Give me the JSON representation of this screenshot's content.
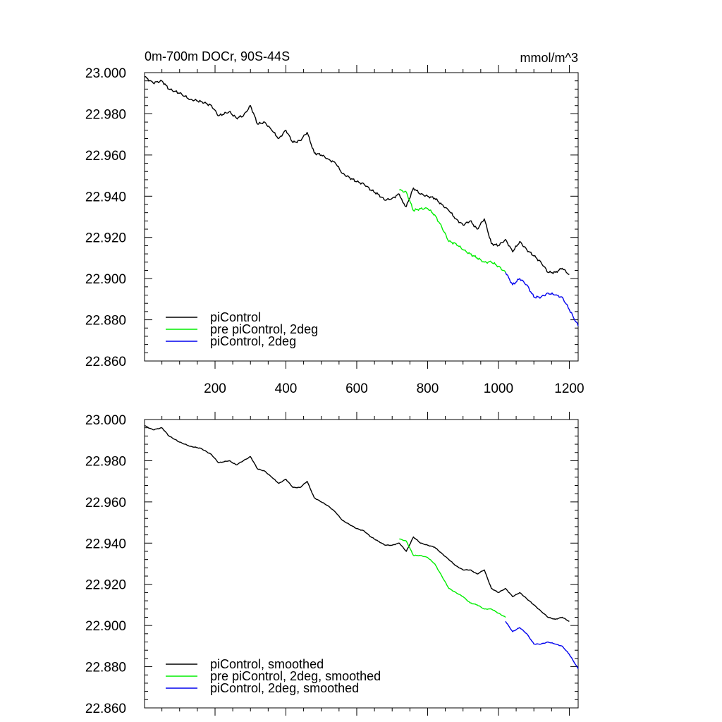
{
  "chart_data": [
    {
      "type": "line",
      "title": "0m-700m DOCr, 90S-44S",
      "units": "mmol/m^3",
      "xlim": [
        1,
        1225
      ],
      "ylim": [
        22.86,
        23.0
      ],
      "x_ticks": [
        200,
        400,
        600,
        800,
        1000,
        1200
      ],
      "x_tick_labels": [
        "200",
        "400",
        "600",
        "800",
        "1000",
        "1200"
      ],
      "y_ticks": [
        22.86,
        22.88,
        22.9,
        22.92,
        22.94,
        22.96,
        22.98,
        23.0
      ],
      "y_tick_labels": [
        "22.860",
        "22.880",
        "22.900",
        "22.920",
        "22.940",
        "22.960",
        "22.980",
        "23.000"
      ],
      "legend_position": "bottom-left",
      "series": [
        {
          "name": "piControl",
          "color": "#000000",
          "x": [
            1,
            25,
            50,
            70,
            100,
            130,
            160,
            190,
            210,
            240,
            260,
            280,
            300,
            320,
            340,
            360,
            380,
            400,
            420,
            440,
            460,
            480,
            500,
            520,
            540,
            560,
            580,
            600,
            620,
            640,
            660,
            680,
            700,
            720,
            730,
            740,
            760,
            780,
            800,
            820,
            840,
            860,
            880,
            900,
            920,
            940,
            960,
            980,
            1000,
            1020,
            1040,
            1060,
            1080,
            1100,
            1120,
            1140,
            1160,
            1180,
            1200
          ],
          "values": [
            22.998,
            22.995,
            22.996,
            22.992,
            22.99,
            22.987,
            22.986,
            22.984,
            22.979,
            22.981,
            22.978,
            22.979,
            22.984,
            22.975,
            22.976,
            22.972,
            22.968,
            22.972,
            22.966,
            22.967,
            22.971,
            22.961,
            22.96,
            22.958,
            22.956,
            22.951,
            22.949,
            22.947,
            22.946,
            22.943,
            22.941,
            22.938,
            22.939,
            22.941,
            22.937,
            22.935,
            22.944,
            22.941,
            22.94,
            22.939,
            22.936,
            22.933,
            22.929,
            22.926,
            22.928,
            22.924,
            22.929,
            22.917,
            22.916,
            22.919,
            22.913,
            22.918,
            22.914,
            22.911,
            22.908,
            22.903,
            22.903,
            22.905,
            22.902
          ]
        },
        {
          "name": "pre piControl, 2deg",
          "color": "#00ee00",
          "x": [
            720,
            740,
            760,
            780,
            800,
            820,
            840,
            860,
            880,
            900,
            920,
            940,
            960,
            980,
            1000,
            1020
          ],
          "values": [
            22.943,
            22.942,
            22.933,
            22.934,
            22.934,
            22.931,
            22.925,
            22.918,
            22.917,
            22.914,
            22.912,
            22.91,
            22.908,
            22.908,
            22.906,
            22.903
          ]
        },
        {
          "name": "piControl, 2deg",
          "color": "#0000ee",
          "x": [
            1020,
            1040,
            1060,
            1080,
            1100,
            1120,
            1140,
            1160,
            1180,
            1200,
            1225
          ],
          "values": [
            22.903,
            22.897,
            22.9,
            22.897,
            22.891,
            22.891,
            22.893,
            22.892,
            22.891,
            22.885,
            22.877
          ]
        }
      ]
    },
    {
      "type": "line",
      "xlim": [
        1,
        1225
      ],
      "ylim": [
        22.86,
        23.0
      ],
      "y_ticks": [
        22.86,
        22.88,
        22.9,
        22.92,
        22.94,
        22.96,
        22.98,
        23.0
      ],
      "y_tick_labels": [
        "22.860",
        "22.880",
        "22.900",
        "22.920",
        "22.940",
        "22.960",
        "22.980",
        "23.000"
      ],
      "legend_position": "bottom-left",
      "series": [
        {
          "name": "piControl, smoothed",
          "color": "#000000",
          "x": [
            1,
            25,
            50,
            70,
            100,
            130,
            160,
            190,
            210,
            240,
            260,
            280,
            300,
            320,
            340,
            360,
            380,
            400,
            420,
            440,
            460,
            480,
            500,
            520,
            540,
            560,
            580,
            600,
            620,
            640,
            660,
            680,
            700,
            720,
            740,
            760,
            780,
            800,
            820,
            840,
            860,
            880,
            900,
            920,
            940,
            960,
            980,
            1000,
            1020,
            1040,
            1060,
            1080,
            1100,
            1120,
            1140,
            1160,
            1180,
            1200
          ],
          "values": [
            22.997,
            22.995,
            22.996,
            22.992,
            22.989,
            22.987,
            22.986,
            22.983,
            22.979,
            22.98,
            22.978,
            22.98,
            22.982,
            22.976,
            22.975,
            22.972,
            22.969,
            22.971,
            22.967,
            22.967,
            22.97,
            22.962,
            22.96,
            22.958,
            22.955,
            22.951,
            22.949,
            22.947,
            22.946,
            22.943,
            22.941,
            22.939,
            22.939,
            22.94,
            22.936,
            22.943,
            22.94,
            22.939,
            22.938,
            22.935,
            22.932,
            22.929,
            22.927,
            22.927,
            22.925,
            22.927,
            22.918,
            22.916,
            22.918,
            22.914,
            22.916,
            22.913,
            22.91,
            22.907,
            22.904,
            22.903,
            22.904,
            22.902
          ]
        },
        {
          "name": "pre piControl, 2deg, smoothed",
          "color": "#00ee00",
          "x": [
            720,
            740,
            760,
            780,
            800,
            820,
            840,
            860,
            880,
            900,
            920,
            940,
            960,
            980,
            1000,
            1020
          ],
          "values": [
            22.942,
            22.941,
            22.934,
            22.934,
            22.933,
            22.93,
            22.924,
            22.918,
            22.916,
            22.914,
            22.911,
            22.91,
            22.908,
            22.908,
            22.906,
            22.904
          ]
        },
        {
          "name": "piControl, 2deg, smoothed",
          "color": "#0000ee",
          "x": [
            1020,
            1040,
            1060,
            1080,
            1100,
            1120,
            1140,
            1160,
            1180,
            1200,
            1225
          ],
          "values": [
            22.902,
            22.897,
            22.899,
            22.896,
            22.891,
            22.891,
            22.892,
            22.891,
            22.89,
            22.886,
            22.879
          ]
        }
      ]
    }
  ]
}
